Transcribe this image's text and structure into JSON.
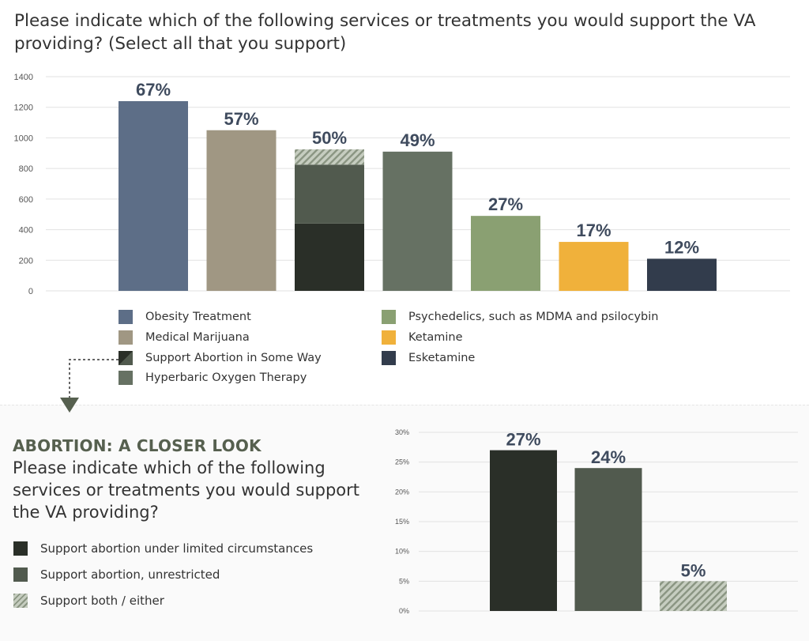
{
  "title": "Please indicate which of the following services or treatments you would support the VA providing? (Select all that you support)",
  "colors": {
    "obesity": "#5d6e87",
    "marijuana": "#a09783",
    "abortion_limited": "#2a2f28",
    "abortion_unrestricted": "#515a4e",
    "hyperbaric": "#667163",
    "psychedelics": "#8aa072",
    "ketamine": "#f0b13b",
    "esketamine": "#323c4c",
    "label": "#3f4b5e",
    "accent_heading": "#56604f"
  },
  "chart_data": [
    {
      "type": "bar",
      "id": "main",
      "title": "Please indicate which of the following services or treatments you would support the VA providing? (Select all that you support)",
      "ylim": [
        0,
        1400
      ],
      "yticks": [
        0,
        200,
        400,
        600,
        800,
        1000,
        1200,
        1400
      ],
      "ytick_labels": [
        "0",
        "200",
        "400",
        "600",
        "800",
        "1000",
        "1200",
        "1400"
      ],
      "series": [
        {
          "name": "Obesity Treatment",
          "key": "obesity",
          "values": [
            1240
          ],
          "label": "67%"
        },
        {
          "name": "Medical Marijuana",
          "key": "marijuana",
          "values": [
            1050
          ],
          "label": "57%"
        },
        {
          "name": "Support Abortion in Some Way",
          "key": "abortion",
          "label": "50%",
          "stack": [
            {
              "name": "Support abortion under limited circumstances",
              "value": 440,
              "style": "abortion_limited"
            },
            {
              "name": "Support abortion, unrestricted",
              "value": 385,
              "style": "abortion_unrestricted"
            },
            {
              "name": "Support both / either",
              "value": 100,
              "style": "hatch"
            }
          ]
        },
        {
          "name": "Hyperbaric Oxygen Therapy",
          "key": "hyperbaric",
          "values": [
            910
          ],
          "label": "49%"
        },
        {
          "name": "Psychedelics, such as MDMA and psilocybin",
          "key": "psychedelics",
          "values": [
            490
          ],
          "label": "27%"
        },
        {
          "name": "Ketamine",
          "key": "ketamine",
          "values": [
            320
          ],
          "label": "17%"
        },
        {
          "name": "Esketamine",
          "key": "esketamine",
          "values": [
            210
          ],
          "label": "12%"
        }
      ],
      "legend": [
        {
          "label": "Obesity Treatment",
          "style": "obesity"
        },
        {
          "label": "Medical Marijuana",
          "style": "marijuana"
        },
        {
          "label": "Support Abortion in Some Way",
          "style": "split"
        },
        {
          "label": "Hyperbaric Oxygen Therapy",
          "style": "hyperbaric"
        },
        {
          "label": "Psychedelics, such as MDMA and psilocybin",
          "style": "psychedelics"
        },
        {
          "label": "Ketamine",
          "style": "ketamine"
        },
        {
          "label": "Esketamine",
          "style": "esketamine"
        }
      ]
    },
    {
      "type": "bar",
      "id": "abortion",
      "section_title": "ABORTION: A CLOSER LOOK",
      "question": "Please indicate which of the following services or treatments you would support the VA providing?",
      "ylim": [
        0,
        30
      ],
      "yticks": [
        0,
        5,
        10,
        15,
        20,
        25,
        30
      ],
      "ytick_labels": [
        "0%",
        "5%",
        "10%",
        "15%",
        "20%",
        "25%",
        "30%"
      ],
      "categories": [
        "Support abortion under limited circumstances",
        "Support abortion, unrestricted",
        "Support both / either"
      ],
      "values": [
        27,
        24,
        5
      ],
      "labels": [
        "27%",
        "24%",
        "5%"
      ],
      "styles": [
        "abortion_limited",
        "abortion_unrestricted",
        "hatch"
      ],
      "legend": [
        {
          "label": "Support abortion under limited circumstances",
          "style": "abortion_limited"
        },
        {
          "label": "Support abortion, unrestricted",
          "style": "abortion_unrestricted"
        },
        {
          "label": "Support both / either",
          "style": "hatch"
        }
      ]
    }
  ]
}
